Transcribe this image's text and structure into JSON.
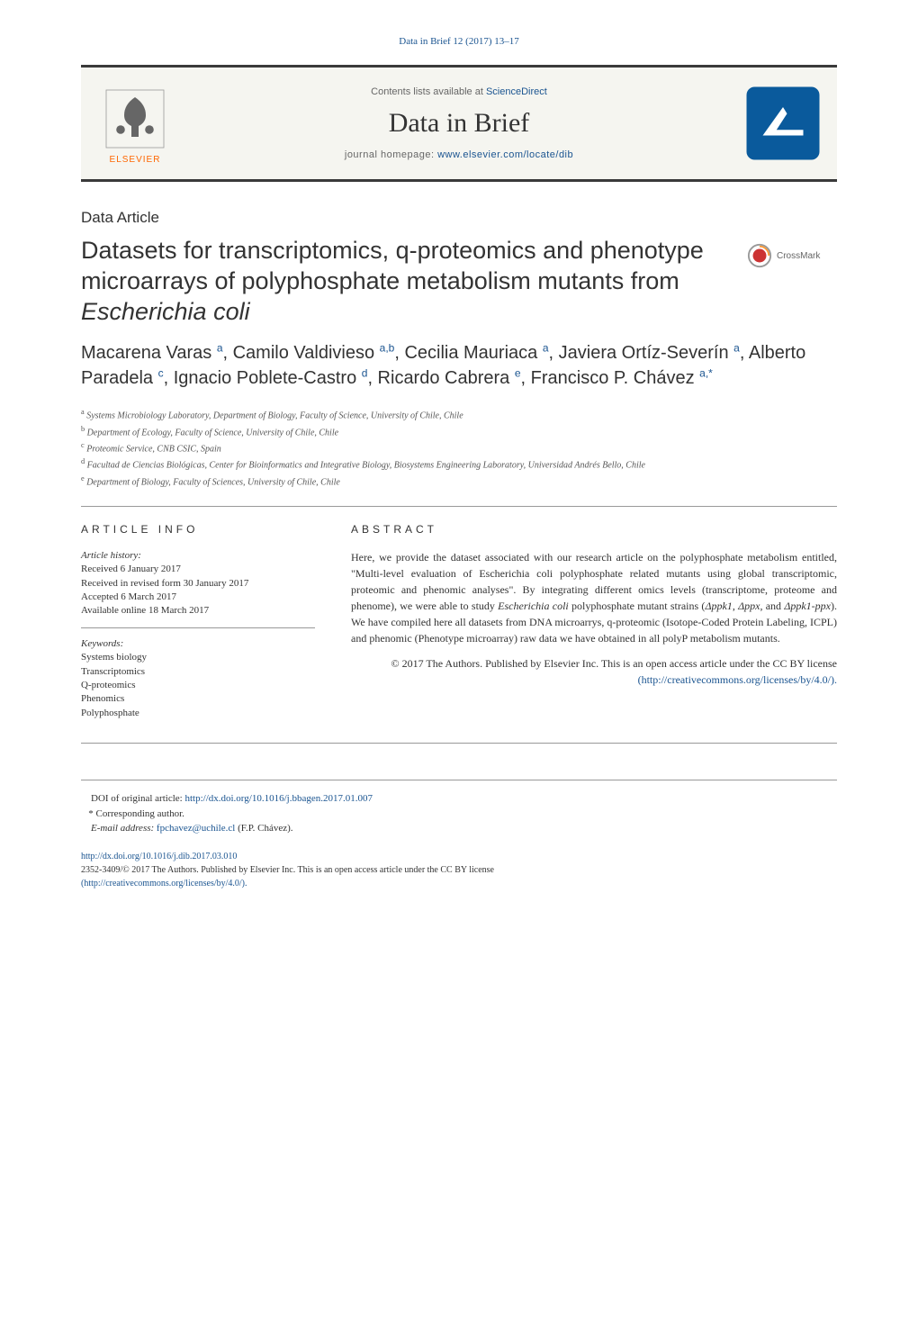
{
  "journal_ref": "Data in Brief 12 (2017) 13–17",
  "header": {
    "contents_prefix": "Contents lists available at ",
    "contents_link": "ScienceDirect",
    "journal_name": "Data in Brief",
    "homepage_prefix": "journal homepage: ",
    "homepage_url": "www.elsevier.com/locate/dib",
    "elsevier_label": "ELSEVIER"
  },
  "article_type": "Data Article",
  "crossmark_label": "CrossMark",
  "title_html": "Datasets for transcriptomics, q-proteomics and phenotype microarrays of polyphosphate metabolism mutants from <em>Escherichia coli</em>",
  "authors_html": "Macarena Varas <sup>a</sup>, Camilo Valdivieso <sup>a,b</sup>, Cecilia Mauriaca <sup>a</sup>, Javiera Ortíz-Severín <sup>a</sup>, Alberto Paradela <sup>c</sup>, Ignacio Poblete-Castro <sup>d</sup>, Ricardo Cabrera <sup>e</sup>, Francisco P. Chávez <sup>a,*</sup>",
  "affiliations": [
    {
      "sup": "a",
      "text": "Systems Microbiology Laboratory, Department of Biology, Faculty of Science, University of Chile, Chile"
    },
    {
      "sup": "b",
      "text": "Department of Ecology, Faculty of Science, University of Chile, Chile"
    },
    {
      "sup": "c",
      "text": "Proteomic Service, CNB CSIC, Spain"
    },
    {
      "sup": "d",
      "text": "Facultad de Ciencias Biológicas, Center for Bioinformatics and Integrative Biology, Biosystems Engineering Laboratory, Universidad Andrés Bello, Chile"
    },
    {
      "sup": "e",
      "text": "Department of Biology, Faculty of Sciences, University of Chile, Chile"
    }
  ],
  "info_head": "ARTICLE INFO",
  "abstract_head": "ABSTRACT",
  "history": {
    "label": "Article history:",
    "received": "Received 6 January 2017",
    "revised": "Received in revised form 30 January 2017",
    "accepted": "Accepted 6 March 2017",
    "online": "Available online 18 March 2017"
  },
  "keywords": {
    "label": "Keywords:",
    "items": [
      "Systems biology",
      "Transcriptomics",
      "Q-proteomics",
      "Phenomics",
      "Polyphosphate"
    ]
  },
  "abstract_html": "Here, we provide the dataset associated with our research article on the polyphosphate metabolism entitled, \"Multi-level evaluation of Escherichia coli polyphosphate related mutants using global transcriptomic, proteomic and phenomic analyses\". By integrating different omics levels (transcriptome, proteome and phenome), we were able to study <em>Escherichia coli</em> polyphosphate mutant strains (<em>Δppk1</em>, <em>Δppx</em>, and <em>Δppk1-ppx</em>). We have compiled here all datasets from DNA microarrys, q-proteomic (Isotope-Coded Protein Labeling, ICPL) and phenomic (Phenotype microarray) raw data we have obtained in all polyP metabolism mutants.",
  "copyright_line": "© 2017 The Authors. Published by Elsevier Inc. This is an open access article under the CC BY license",
  "cc_url": "(http://creativecommons.org/licenses/by/4.0/).",
  "footer": {
    "doi_original_label": "DOI of original article: ",
    "doi_original_url": "http://dx.doi.org/10.1016/j.bbagen.2017.01.007",
    "corresponding": "* Corresponding author.",
    "email_label": "E-mail address: ",
    "email": "fpchavez@uchile.cl",
    "email_suffix": " (F.P. Chávez).",
    "doi_url": "http://dx.doi.org/10.1016/j.dib.2017.03.010",
    "license_text": "2352-3409/© 2017 The Authors. Published by Elsevier Inc. This is an open access article under the CC BY license",
    "license_url": "(http://creativecommons.org/licenses/by/4.0/)."
  },
  "colors": {
    "link": "#1a5490",
    "orange": "#ff6600",
    "logo_blue": "#0a5a9c",
    "crossmark_red": "#cc3333"
  }
}
